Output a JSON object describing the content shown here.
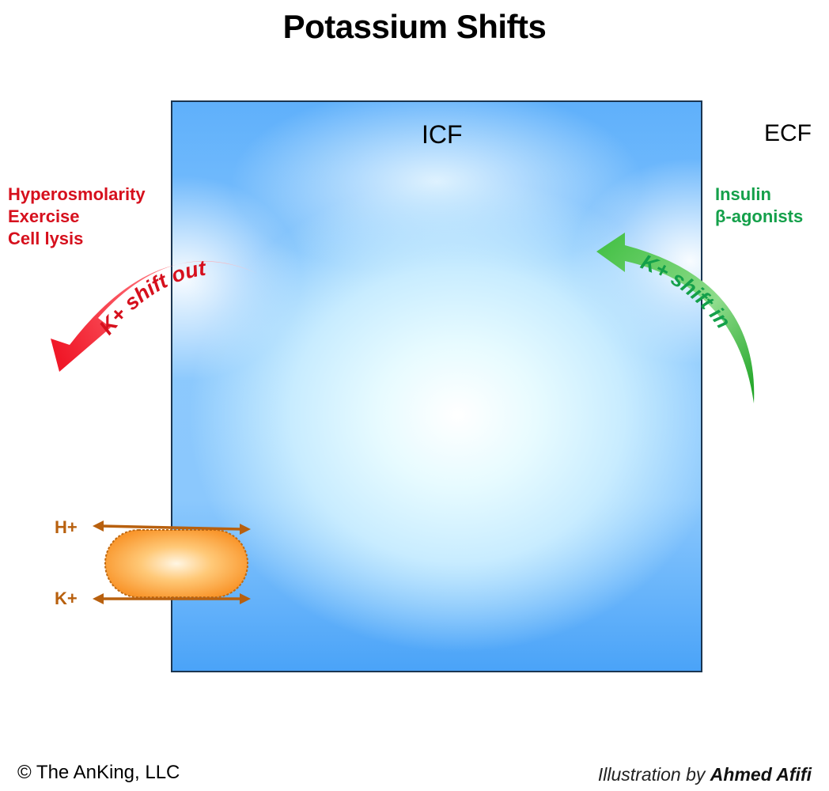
{
  "title": "Potassium Shifts",
  "compartments": {
    "icf": "ICF",
    "ecf": "ECF"
  },
  "shift_out": {
    "causes": [
      "Hyperosmolarity",
      "Exercise",
      "Cell lysis"
    ],
    "arrow_label": "K+ shift out",
    "color": "#d6101d"
  },
  "shift_in": {
    "causes": [
      "Insulin",
      "β-agonists"
    ],
    "arrow_label": "K+ shift in",
    "color": "#14a04a"
  },
  "exchanger": {
    "top_ion": "H+",
    "bottom_ion": "K+",
    "color": "#b8600e"
  },
  "footer": {
    "copyright": "© The AnKing, LLC",
    "credit_prefix": "Illustration by ",
    "credit_author": "Ahmed Afifi"
  }
}
